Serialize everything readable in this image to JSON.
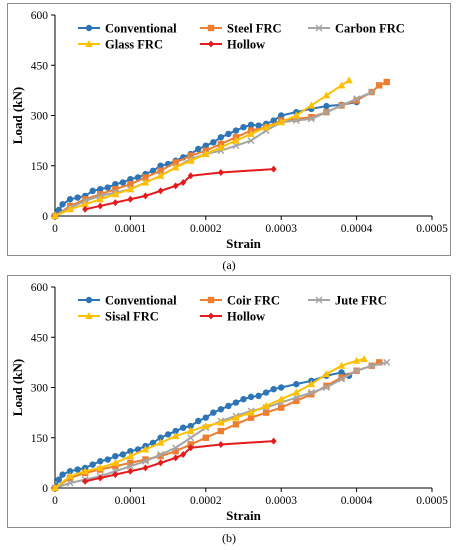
{
  "chart_data": [
    {
      "type": "line",
      "caption": "(a)",
      "xlabel": "Strain",
      "ylabel": "Load (kN)",
      "xlim": [
        0,
        0.0005
      ],
      "ylim": [
        0,
        600
      ],
      "xticks": [
        "0",
        "0.0001",
        "0.0002",
        "0.0003",
        "0.0004",
        "0.0005"
      ],
      "yticks": [
        "0",
        "150",
        "300",
        "450",
        "600"
      ],
      "legend_position": "top",
      "series": [
        {
          "name": "Conventional",
          "color": "#2e75b6",
          "marker": "circle",
          "x": [
            0,
            5e-06,
            1e-05,
            2e-05,
            3e-05,
            4e-05,
            5e-05,
            6e-05,
            7e-05,
            8e-05,
            9e-05,
            0.0001,
            0.00011,
            0.00012,
            0.00013,
            0.00014,
            0.00015,
            0.00016,
            0.00017,
            0.00018,
            0.00019,
            0.0002,
            0.00021,
            0.00022,
            0.00023,
            0.00024,
            0.00025,
            0.00026,
            0.00027,
            0.00028,
            0.00029,
            0.0003,
            0.00032,
            0.00034,
            0.00036,
            0.00038,
            0.0004
          ],
          "y": [
            0,
            18,
            35,
            50,
            55,
            60,
            75,
            80,
            85,
            95,
            100,
            110,
            115,
            125,
            135,
            150,
            155,
            165,
            175,
            185,
            200,
            210,
            220,
            235,
            245,
            255,
            265,
            272,
            270,
            275,
            285,
            300,
            310,
            320,
            328,
            332,
            340
          ]
        },
        {
          "name": "Steel FRC",
          "color": "#ed7d31",
          "marker": "square",
          "x": [
            0,
            2e-05,
            4e-05,
            6e-05,
            8e-05,
            0.0001,
            0.00012,
            0.00014,
            0.00016,
            0.00018,
            0.0002,
            0.00022,
            0.00024,
            0.00026,
            0.00028,
            0.0003,
            0.00032,
            0.00034,
            0.00036,
            0.00038,
            0.0004,
            0.00042,
            0.00043,
            0.00044
          ],
          "y": [
            0,
            30,
            50,
            65,
            80,
            95,
            115,
            135,
            160,
            180,
            195,
            215,
            235,
            255,
            265,
            285,
            290,
            295,
            310,
            330,
            345,
            370,
            390,
            400
          ]
        },
        {
          "name": "Carbon FRC",
          "color": "#a5a5a5",
          "marker": "x",
          "x": [
            0,
            2e-05,
            4e-05,
            6e-05,
            8e-05,
            0.0001,
            0.00012,
            0.00014,
            0.00016,
            0.00018,
            0.0002,
            0.00022,
            0.00024,
            0.00026,
            0.00028,
            0.0003,
            0.00032,
            0.00034,
            0.00036,
            0.00038,
            0.0004,
            0.00042
          ],
          "y": [
            0,
            25,
            45,
            60,
            70,
            80,
            100,
            120,
            145,
            170,
            185,
            195,
            210,
            225,
            255,
            280,
            285,
            290,
            310,
            330,
            350,
            370
          ]
        },
        {
          "name": "Glass FRC",
          "color": "#ffc000",
          "marker": "triangle",
          "x": [
            0,
            2e-05,
            4e-05,
            6e-05,
            8e-05,
            0.0001,
            0.00012,
            0.00014,
            0.00016,
            0.00018,
            0.0002,
            0.00022,
            0.00024,
            0.00026,
            0.00028,
            0.0003,
            0.00032,
            0.00034,
            0.00036,
            0.00038,
            0.00039
          ],
          "y": [
            0,
            20,
            35,
            50,
            65,
            80,
            100,
            120,
            145,
            165,
            185,
            205,
            225,
            245,
            265,
            280,
            300,
            330,
            360,
            390,
            405
          ]
        },
        {
          "name": "Hollow",
          "color": "#e41a1c",
          "marker": "diamond",
          "x": [
            4e-05,
            6e-05,
            8e-05,
            0.0001,
            0.00012,
            0.00014,
            0.00016,
            0.00017,
            0.00018,
            0.00022,
            0.00029
          ],
          "y": [
            20,
            30,
            40,
            50,
            60,
            75,
            90,
            100,
            120,
            130,
            140
          ]
        }
      ]
    },
    {
      "type": "line",
      "caption": "(b)",
      "xlabel": "Strain",
      "ylabel": "Load (kN)",
      "xlim": [
        0,
        0.0005
      ],
      "ylim": [
        0,
        600
      ],
      "xticks": [
        "0",
        "0.0001",
        "0.0002",
        "0.0003",
        "0.0004",
        "0.0005"
      ],
      "yticks": [
        "0",
        "150",
        "300",
        "450",
        "600"
      ],
      "legend_position": "top",
      "series": [
        {
          "name": "Conventional",
          "color": "#2e75b6",
          "marker": "circle",
          "x": [
            0,
            5e-06,
            1e-05,
            2e-05,
            3e-05,
            4e-05,
            5e-05,
            6e-05,
            7e-05,
            8e-05,
            9e-05,
            0.0001,
            0.00011,
            0.00012,
            0.00013,
            0.00014,
            0.00015,
            0.00016,
            0.00017,
            0.00018,
            0.00019,
            0.0002,
            0.00021,
            0.00022,
            0.00023,
            0.00024,
            0.00025,
            0.00026,
            0.00027,
            0.00028,
            0.00029,
            0.0003,
            0.00032,
            0.00034,
            0.00036,
            0.00038,
            0.00039
          ],
          "y": [
            0,
            25,
            40,
            50,
            55,
            60,
            70,
            80,
            85,
            95,
            100,
            110,
            115,
            125,
            135,
            150,
            160,
            170,
            180,
            185,
            200,
            210,
            225,
            235,
            245,
            255,
            265,
            272,
            275,
            285,
            295,
            300,
            310,
            320,
            335,
            345,
            335
          ]
        },
        {
          "name": "Coir FRC",
          "color": "#ed7d31",
          "marker": "square",
          "x": [
            0,
            2e-05,
            4e-05,
            6e-05,
            8e-05,
            0.0001,
            0.00012,
            0.00014,
            0.00016,
            0.00018,
            0.0002,
            0.00022,
            0.00024,
            0.00026,
            0.00028,
            0.0003,
            0.00032,
            0.00034,
            0.00036,
            0.00038,
            0.0004,
            0.00042,
            0.00043
          ],
          "y": [
            0,
            30,
            45,
            55,
            65,
            75,
            85,
            95,
            110,
            130,
            150,
            170,
            190,
            210,
            225,
            240,
            260,
            280,
            305,
            330,
            350,
            365,
            375
          ]
        },
        {
          "name": "Jute FRC",
          "color": "#a5a5a5",
          "marker": "x",
          "x": [
            0,
            2e-05,
            4e-05,
            6e-05,
            8e-05,
            0.0001,
            0.00012,
            0.00014,
            0.00016,
            0.00018,
            0.0002,
            0.00022,
            0.00024,
            0.00026,
            0.00028,
            0.0003,
            0.00032,
            0.00034,
            0.00036,
            0.00038,
            0.0004,
            0.00042,
            0.00044
          ],
          "y": [
            0,
            15,
            25,
            35,
            50,
            65,
            80,
            100,
            120,
            150,
            180,
            200,
            215,
            230,
            240,
            255,
            270,
            285,
            300,
            325,
            350,
            365,
            375
          ]
        },
        {
          "name": "Sisal FRC",
          "color": "#ffc000",
          "marker": "triangle",
          "x": [
            0,
            2e-05,
            4e-05,
            6e-05,
            8e-05,
            0.0001,
            0.00012,
            0.00014,
            0.00016,
            0.00018,
            0.0002,
            0.00022,
            0.00024,
            0.00026,
            0.00028,
            0.0003,
            0.00032,
            0.00034,
            0.00036,
            0.00038,
            0.0004,
            0.00041
          ],
          "y": [
            0,
            35,
            50,
            60,
            75,
            95,
            115,
            135,
            155,
            170,
            185,
            195,
            210,
            225,
            245,
            265,
            285,
            310,
            340,
            365,
            380,
            385
          ]
        },
        {
          "name": "Hollow",
          "color": "#e41a1c",
          "marker": "diamond",
          "x": [
            4e-05,
            6e-05,
            8e-05,
            0.0001,
            0.00012,
            0.00014,
            0.00016,
            0.00017,
            0.00018,
            0.00022,
            0.00029
          ],
          "y": [
            20,
            30,
            40,
            50,
            60,
            75,
            90,
            100,
            120,
            130,
            140
          ]
        }
      ]
    }
  ]
}
